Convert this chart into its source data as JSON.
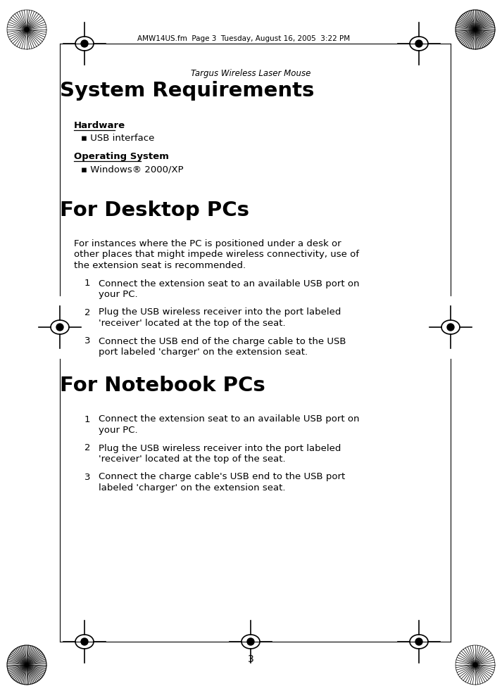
{
  "page_number": "3",
  "header_text": "AMW14US.fm  Page 3  Tuesday, August 16, 2005  3:22 PM",
  "subtitle": "Targus Wireless Laser Mouse",
  "section1_title": "System Requirements",
  "hardware_label": "Hardware",
  "hardware_item": "▪ USB interface",
  "os_label": "Operating System",
  "os_item": "▪ Windows® 2000/XP",
  "section2_title": "For Desktop PCs",
  "desktop_intro": "For instances where the PC is positioned under a desk or\nother places that might impede wireless connectivity, use of\nthe extension seat is recommended.",
  "desktop_items": [
    "Connect the extension seat to an available USB port on\nyour PC.",
    "Plug the USB wireless receiver into the port labeled\n'receiver' located at the top of the seat.",
    "Connect the USB end of the charge cable to the USB\nport labeled 'charger' on the extension seat."
  ],
  "section3_title": "For Notebook PCs",
  "notebook_items": [
    "Connect the extension seat to an available USB port on\nyour PC.",
    "Plug the USB wireless receiver into the port labeled\n'receiver' located at the top of the seat.",
    "Connect the charge cable's USB end to the USB port\nlabeled 'charger' on the extension seat."
  ],
  "bg_color": "#ffffff",
  "text_color": "#000000"
}
